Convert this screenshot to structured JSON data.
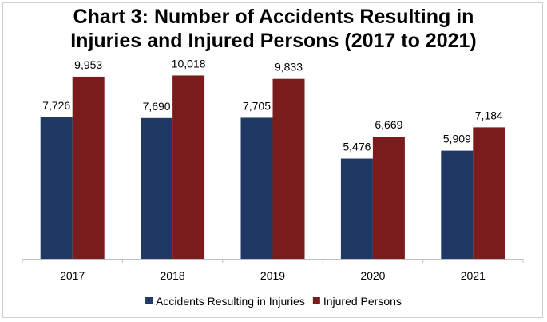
{
  "chart_data": {
    "type": "bar",
    "title_line1": "Chart 3: Number of Accidents Resulting in",
    "title_line2": "Injuries and Injured Persons (2017 to 2021)",
    "categories": [
      "2017",
      "2018",
      "2019",
      "2020",
      "2021"
    ],
    "series": [
      {
        "name": "Accidents Resulting in Injuries",
        "color": "#1f3864",
        "values": [
          7726,
          7690,
          7705,
          5476,
          5909
        ],
        "labels": [
          "7,726",
          "7,690",
          "7,705",
          "5,476",
          "5,909"
        ]
      },
      {
        "name": "Injured Persons",
        "color": "#7b1c1c",
        "values": [
          9953,
          10018,
          9833,
          6669,
          7184
        ],
        "labels": [
          "9,953",
          "10,018",
          "9,833",
          "6,669",
          "7,184"
        ]
      }
    ],
    "ylim": [
      0,
      10300
    ],
    "grid": false,
    "legend_position": "bottom"
  }
}
